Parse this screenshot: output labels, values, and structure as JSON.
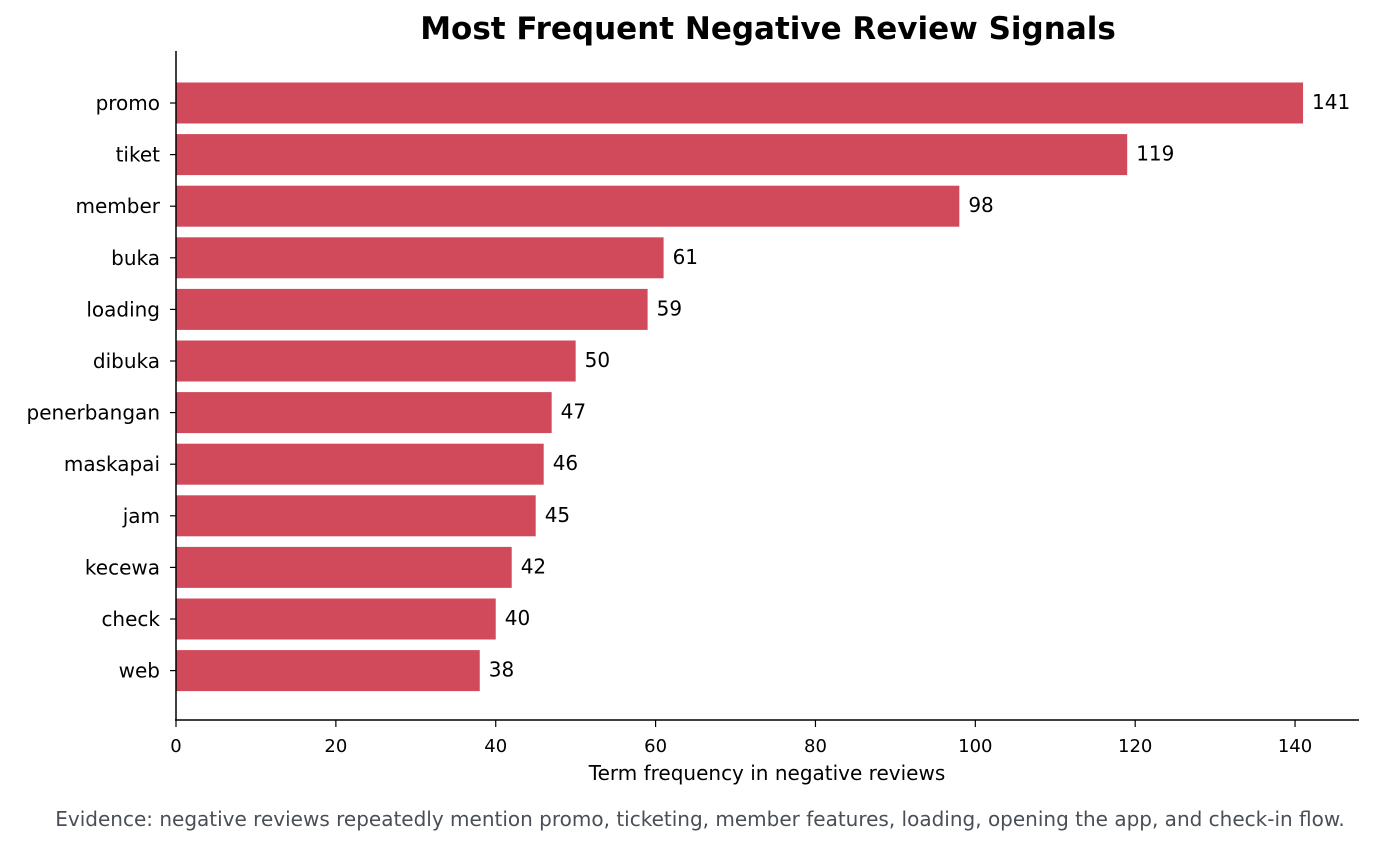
{
  "chart_data": {
    "type": "bar",
    "orientation": "horizontal",
    "title": "Most Frequent Negative Review Signals",
    "xlabel": "Term frequency in negative reviews",
    "ylabel": "",
    "categories": [
      "promo",
      "tiket",
      "member",
      "buka",
      "loading",
      "dibuka",
      "penerbangan",
      "maskapai",
      "jam",
      "kecewa",
      "check",
      "web"
    ],
    "values": [
      141,
      119,
      98,
      61,
      59,
      50,
      47,
      46,
      45,
      42,
      40,
      38
    ],
    "xlim": [
      0,
      148
    ],
    "xticks": [
      0,
      20,
      40,
      60,
      80,
      100,
      120,
      140
    ],
    "grid": false,
    "bar_color": "#d04a5c",
    "caption": "Evidence: negative reviews repeatedly mention promo, ticketing, member features, loading, opening the app, and check-in flow.",
    "caption_color": "#4a4f57"
  }
}
